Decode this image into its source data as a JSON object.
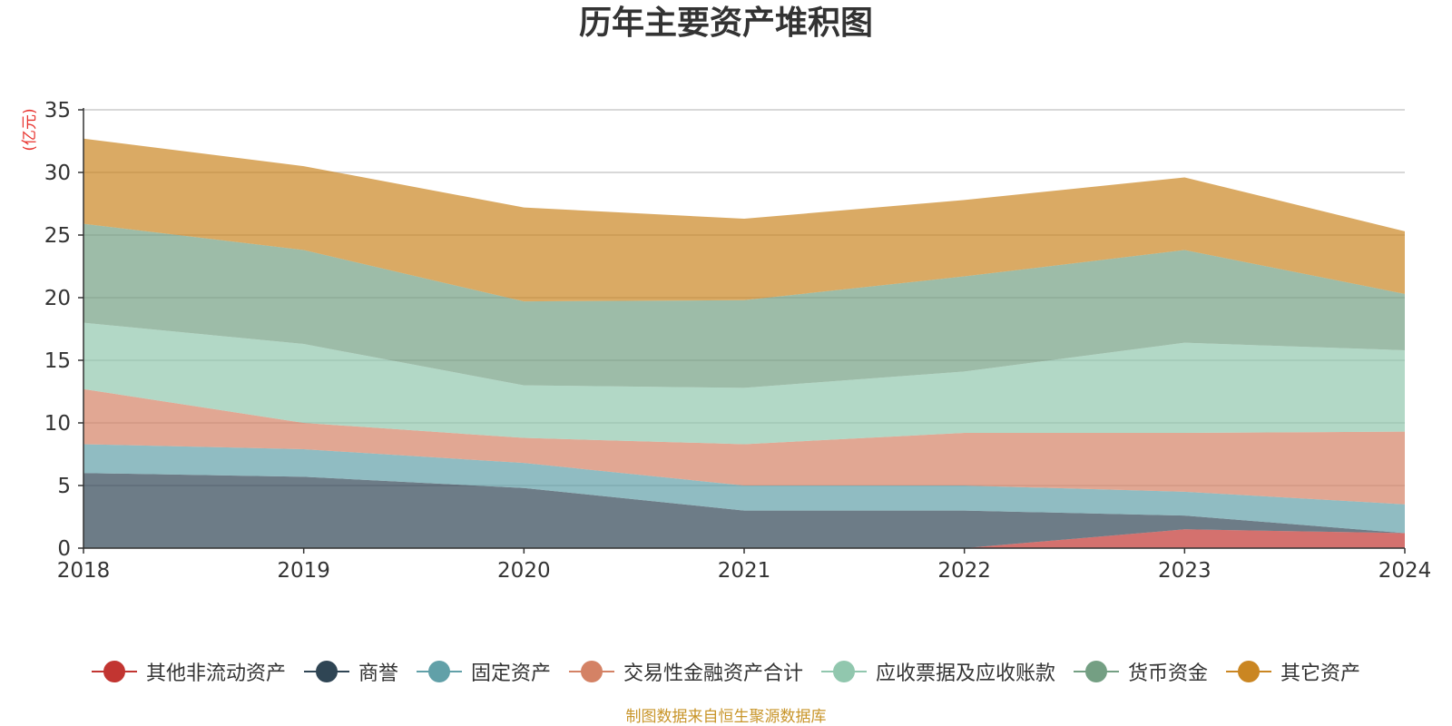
{
  "title": "历年主要资产堆积图",
  "source": "制图数据来自恒生聚源数据库",
  "chart_data": {
    "type": "area",
    "stacked": true,
    "title": "历年主要资产堆积图",
    "ylabel": "(亿元)",
    "xlabel": "",
    "x": [
      "2018",
      "2019",
      "2020",
      "2021",
      "2022",
      "2023",
      "2024"
    ],
    "ylim": [
      0,
      35
    ],
    "yticks": [
      0,
      5,
      10,
      15,
      20,
      25,
      30,
      35
    ],
    "grid": true,
    "legend_position": "bottom",
    "series": [
      {
        "name": "其他非流动资产",
        "color": "#c23531",
        "values": [
          0,
          0,
          0,
          0,
          0,
          1.5,
          1.2
        ]
      },
      {
        "name": "商誉",
        "color": "#2f4554",
        "values": [
          6.0,
          5.7,
          4.8,
          3.0,
          3.0,
          1.1,
          0
        ]
      },
      {
        "name": "固定资产",
        "color": "#61a0a8",
        "values": [
          2.3,
          2.2,
          2.0,
          2.0,
          2.0,
          1.9,
          2.3
        ]
      },
      {
        "name": "交易性金融资产合计",
        "color": "#d48265",
        "values": [
          4.4,
          2.1,
          2.0,
          3.3,
          4.2,
          4.7,
          5.8
        ]
      },
      {
        "name": "应收票据及应收账款",
        "color": "#91c7ae",
        "values": [
          5.3,
          6.3,
          4.2,
          4.5,
          4.9,
          7.2,
          6.5
        ]
      },
      {
        "name": "货币资金",
        "color": "#749f83",
        "values": [
          7.9,
          7.5,
          6.7,
          7.0,
          7.6,
          7.4,
          4.5
        ]
      },
      {
        "name": "其它资产",
        "color": "#ca8622",
        "values": [
          6.8,
          6.7,
          7.5,
          6.5,
          6.1,
          5.8,
          5.0
        ]
      }
    ]
  }
}
